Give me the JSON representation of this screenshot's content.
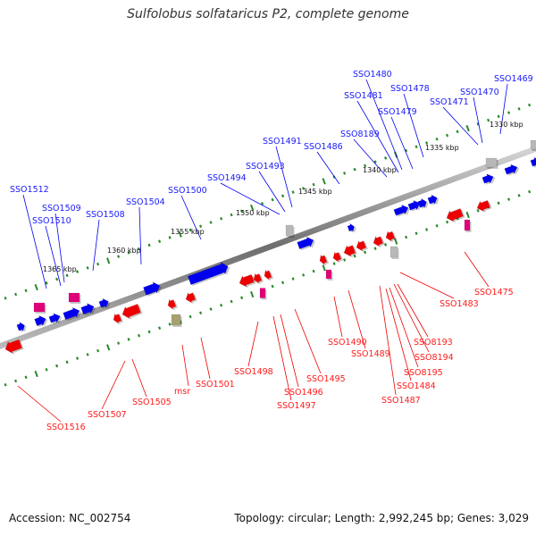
{
  "title": "Sulfolobus solfataricus P2, complete genome",
  "accession": "Accession: NC_002754",
  "summary": "Topology: circular; Length: 2,992,245 bp; Genes: 3,029",
  "colors": {
    "forward_gene": "#0000ee",
    "reverse_gene": "#ee0000",
    "rna_gene": "#e0007a",
    "pseudo_gene": "#b8b8b8",
    "misc_feature": "#a8a070",
    "backbone": "#888888",
    "tick": "#2a8a2a"
  },
  "scale_labels": [
    "1330 kbp",
    "1335 kbp",
    "1340 kbp",
    "1345 kbp",
    "1350 kbp",
    "1355 kbp",
    "1360 kbp",
    "1365 kbp"
  ],
  "forward_labels": [
    "SSO1469",
    "SSO1470",
    "SSO1471",
    "SSO1478",
    "SSO1480",
    "SSO1481",
    "SSO1479",
    "SSO8189",
    "SSO1486",
    "SSO1491",
    "SSO1493",
    "SSO1494",
    "SSO1500",
    "SSO1504",
    "SSO1508",
    "SSO1509",
    "SSO1510",
    "SSO1512"
  ],
  "reverse_labels": [
    "SSO1475",
    "SSO1483",
    "SSO8193",
    "SSO8194",
    "SSO8195",
    "SSO1484",
    "SSO1487",
    "SSO1489",
    "SSO1490",
    "SSO1495",
    "SSO1496",
    "SSO1497",
    "SSO1498",
    "SSO1501",
    "msr",
    "SSO1505",
    "SSO1507",
    "SSO1516"
  ]
}
